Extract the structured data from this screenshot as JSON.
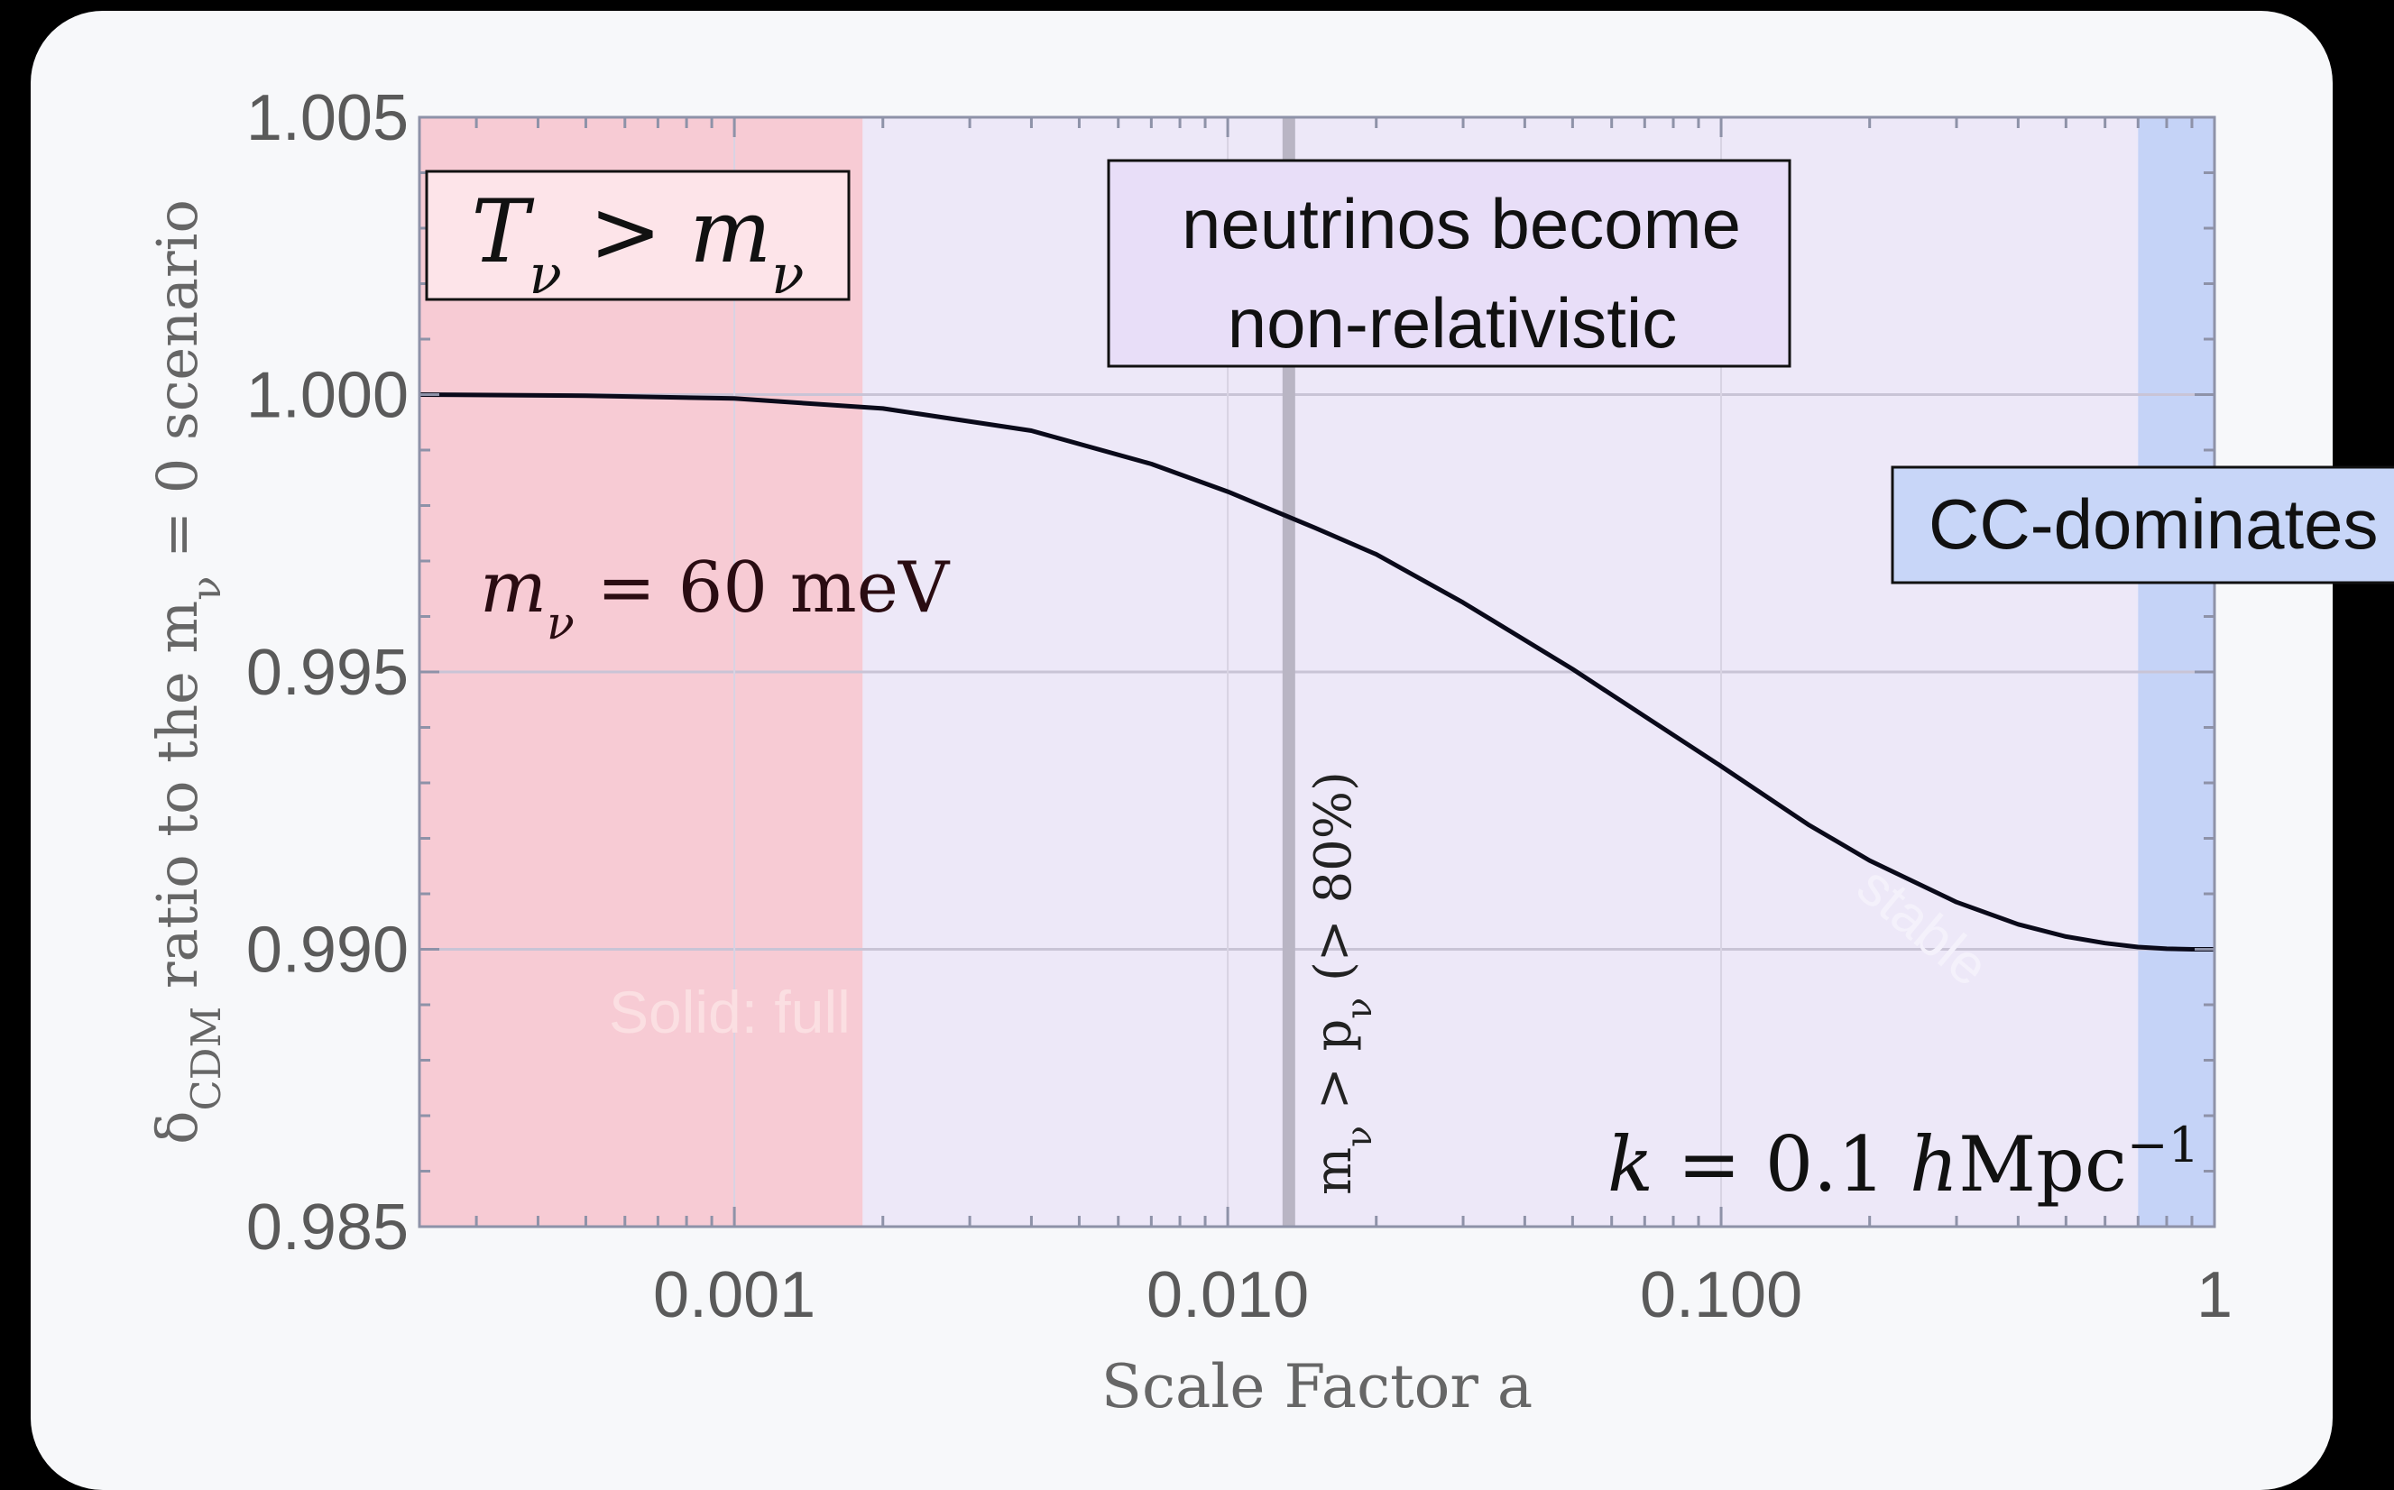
{
  "chart_data": {
    "type": "line",
    "xscale": "log",
    "xlim": [
      0.00023,
      1
    ],
    "ylim": [
      0.985,
      1.005
    ],
    "xlabel": "Scale  Factor  a",
    "ylabel_html": "δ<tspan baseline-shift=\"sub\" font-size=\"0.72em\">CDM</tspan>  ratio  to  the  m<tspan baseline-shift=\"sub\" font-size=\"0.72em\">ν</tspan> = 0  scenario",
    "ylabel_text": "δCDM ratio to the mν = 0 scenario",
    "x_ticks": [
      {
        "value": 0.001,
        "label": "0.001"
      },
      {
        "value": 0.01,
        "label": "0.010"
      },
      {
        "value": 0.1,
        "label": "0.100"
      },
      {
        "value": 1,
        "label": "1"
      }
    ],
    "y_ticks": [
      {
        "value": 1.005,
        "label": "1.005"
      },
      {
        "value": 1.0,
        "label": "1.000"
      },
      {
        "value": 0.995,
        "label": "0.995"
      },
      {
        "value": 0.99,
        "label": "0.990"
      },
      {
        "value": 0.985,
        "label": "0.985"
      }
    ],
    "grid": true,
    "series": [
      {
        "color": "#0a0a1a",
        "x": [
          0.00023,
          0.0005,
          0.001,
          0.002,
          0.004,
          0.007,
          0.01,
          0.015,
          0.02,
          0.03,
          0.05,
          0.07,
          0.1,
          0.15,
          0.2,
          0.3,
          0.4,
          0.5,
          0.6,
          0.7,
          0.8,
          0.9,
          1.0
        ],
        "y": [
          1.0,
          0.99998,
          0.99993,
          0.99975,
          0.99935,
          0.99875,
          0.99825,
          0.9976,
          0.99712,
          0.99625,
          0.99505,
          0.9942,
          0.9933,
          0.99225,
          0.9916,
          0.99085,
          0.99045,
          0.99023,
          0.99011,
          0.99004,
          0.99001,
          0.99,
          0.99
        ]
      }
    ],
    "regions": [
      {
        "name": "radiation",
        "x0": 0.00023,
        "x1": 0.00182,
        "color": "#f7cbd4"
      },
      {
        "name": "middle",
        "x0": 0.00182,
        "x1": 0.7,
        "color": "#ede8f8"
      },
      {
        "name": "cc",
        "x0": 0.7,
        "x1": 1,
        "color": "#c5d3f7"
      }
    ],
    "vline": {
      "x": 0.0133,
      "color": "#b9b5c4",
      "label_html": "m<tspan baseline-shift=\"sub\" font-size=\"0.7em\">ν</tspan> &gt; p<tspan baseline-shift=\"sub\" font-size=\"0.7em\">ν</tspan>  (&gt; 80%)"
    },
    "annotations": {
      "temp_box_html": "<tspan font-style=\"italic\">T</tspan><tspan baseline-shift=\"sub\" font-size=\"0.62em\" font-style=\"italic\">ν</tspan> &gt; <tspan font-style=\"italic\">m</tspan><tspan baseline-shift=\"sub\" font-size=\"0.62em\" font-style=\"italic\">ν</tspan>",
      "temp_box_text": "Tν > mν",
      "neutrino_line1": "neutrinos become",
      "neutrino_line2": "non-relativistic",
      "cc_label": "CC-dominates",
      "mass_html": "<tspan font-style=\"italic\">m</tspan><tspan baseline-shift=\"sub\" font-size=\"0.65em\" font-style=\"italic\">ν</tspan> = 60 meV",
      "mass_text": "mν = 60 meV",
      "k_html": "<tspan font-style=\"italic\">k</tspan> = 0.1 <tspan font-style=\"italic\">h</tspan>Mpc<tspan baseline-shift=\"super\" font-size=\"0.65em\">−1</tspan>",
      "k_text": "k = 0.1 hMpc−1",
      "faint_solid": "Solid: full",
      "faint_stable": "stable"
    }
  }
}
